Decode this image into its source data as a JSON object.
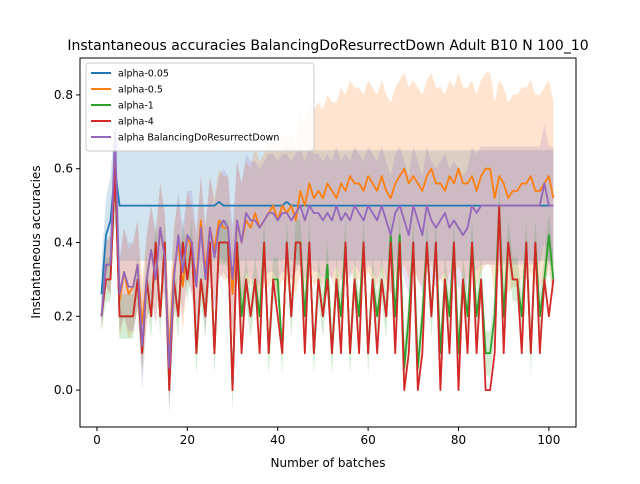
{
  "chart_data": {
    "type": "line",
    "title": "Instantaneous accuracies BalancingDoResurrectDown Adult B10 N 100_10",
    "xlabel": "Number of batches",
    "ylabel": "Instantaneous accuracies",
    "xlim": [
      -3.75,
      106
    ],
    "ylim": [
      -0.1,
      0.9
    ],
    "x_ticks": [
      0,
      20,
      40,
      60,
      80,
      100
    ],
    "y_ticks": [
      0.0,
      0.2,
      0.4,
      0.6,
      0.8
    ],
    "x_tick_labels": [
      "0",
      "20",
      "40",
      "60",
      "80",
      "100"
    ],
    "y_tick_labels": [
      "0.0",
      "0.2",
      "0.4",
      "0.6",
      "0.8"
    ],
    "grid": false,
    "legend_position": "top-left",
    "x": [
      1,
      2,
      3,
      4,
      5,
      6,
      7,
      8,
      9,
      10,
      11,
      12,
      13,
      14,
      15,
      16,
      17,
      18,
      19,
      20,
      21,
      22,
      23,
      24,
      25,
      26,
      27,
      28,
      29,
      30,
      31,
      32,
      33,
      34,
      35,
      36,
      37,
      38,
      39,
      40,
      41,
      42,
      43,
      44,
      45,
      46,
      47,
      48,
      49,
      50,
      51,
      52,
      53,
      54,
      55,
      56,
      57,
      58,
      59,
      60,
      61,
      62,
      63,
      64,
      65,
      66,
      67,
      68,
      69,
      70,
      71,
      72,
      73,
      74,
      75,
      76,
      77,
      78,
      79,
      80,
      81,
      82,
      83,
      84,
      85,
      86,
      87,
      88,
      89,
      90,
      91,
      92,
      93,
      94,
      95,
      96,
      97,
      98,
      99,
      100,
      101
    ],
    "series": [
      {
        "name": "alpha-0.05",
        "color": "#1f77b4",
        "values": [
          0.26,
          0.42,
          0.46,
          0.6,
          0.5,
          0.5,
          0.5,
          0.5,
          0.5,
          0.5,
          0.5,
          0.5,
          0.5,
          0.5,
          0.5,
          0.5,
          0.5,
          0.5,
          0.5,
          0.5,
          0.5,
          0.5,
          0.5,
          0.5,
          0.5,
          0.5,
          0.51,
          0.5,
          0.5,
          0.5,
          0.5,
          0.5,
          0.5,
          0.5,
          0.5,
          0.5,
          0.5,
          0.5,
          0.5,
          0.5,
          0.5,
          0.51,
          0.5,
          0.5,
          0.5,
          0.5,
          0.5,
          0.5,
          0.5,
          0.5,
          0.5,
          0.5,
          0.5,
          0.5,
          0.5,
          0.5,
          0.5,
          0.5,
          0.5,
          0.5,
          0.5,
          0.5,
          0.5,
          0.5,
          0.5,
          0.5,
          0.5,
          0.5,
          0.5,
          0.5,
          0.5,
          0.5,
          0.5,
          0.5,
          0.5,
          0.5,
          0.5,
          0.5,
          0.5,
          0.5,
          0.5,
          0.5,
          0.5,
          0.5,
          0.5,
          0.5,
          0.5,
          0.5,
          0.5,
          0.5,
          0.5,
          0.5,
          0.5,
          0.5,
          0.5,
          0.5,
          0.5,
          0.5,
          0.5,
          0.5,
          0.5
        ],
        "band_halfwidth": [
          0.08,
          0.1,
          0.12,
          0.15,
          0.15,
          0.15,
          0.15,
          0.15,
          0.15,
          0.15,
          0.15,
          0.15,
          0.15,
          0.15,
          0.15,
          0.15,
          0.15,
          0.15,
          0.15,
          0.15,
          0.15,
          0.15,
          0.15,
          0.15,
          0.15,
          0.15,
          0.15,
          0.15,
          0.15,
          0.15,
          0.15,
          0.15,
          0.15,
          0.15,
          0.15,
          0.15,
          0.15,
          0.15,
          0.15,
          0.15,
          0.15,
          0.15,
          0.15,
          0.15,
          0.15,
          0.15,
          0.15,
          0.15,
          0.15,
          0.15,
          0.15,
          0.15,
          0.15,
          0.15,
          0.15,
          0.15,
          0.15,
          0.15,
          0.15,
          0.15,
          0.15,
          0.15,
          0.15,
          0.15,
          0.15,
          0.15,
          0.15,
          0.15,
          0.15,
          0.15,
          0.15,
          0.15,
          0.15,
          0.15,
          0.15,
          0.15,
          0.15,
          0.15,
          0.15,
          0.15,
          0.15,
          0.15,
          0.15,
          0.15,
          0.15,
          0.15,
          0.15,
          0.15,
          0.15,
          0.15,
          0.15,
          0.15,
          0.15,
          0.15,
          0.15,
          0.15,
          0.15,
          0.15,
          0.15,
          0.15,
          0.15
        ]
      },
      {
        "name": "alpha-0.5",
        "color": "#ff7f0e",
        "values": [
          0.2,
          0.34,
          0.34,
          0.62,
          0.24,
          0.32,
          0.26,
          0.28,
          0.34,
          0.18,
          0.3,
          0.38,
          0.3,
          0.44,
          0.36,
          0.1,
          0.32,
          0.4,
          0.28,
          0.42,
          0.38,
          0.3,
          0.46,
          0.32,
          0.44,
          0.38,
          0.46,
          0.44,
          0.44,
          0.26,
          0.46,
          0.4,
          0.46,
          0.44,
          0.48,
          0.44,
          0.46,
          0.48,
          0.5,
          0.46,
          0.5,
          0.48,
          0.5,
          0.46,
          0.54,
          0.5,
          0.56,
          0.52,
          0.54,
          0.52,
          0.56,
          0.54,
          0.52,
          0.56,
          0.54,
          0.58,
          0.56,
          0.56,
          0.54,
          0.58,
          0.56,
          0.54,
          0.58,
          0.54,
          0.52,
          0.56,
          0.58,
          0.6,
          0.56,
          0.58,
          0.56,
          0.54,
          0.58,
          0.6,
          0.56,
          0.56,
          0.54,
          0.58,
          0.56,
          0.6,
          0.56,
          0.56,
          0.58,
          0.54,
          0.58,
          0.6,
          0.6,
          0.52,
          0.58,
          0.56,
          0.52,
          0.54,
          0.54,
          0.56,
          0.56,
          0.58,
          0.54,
          0.54,
          0.56,
          0.58,
          0.52
        ],
        "band_halfwidth": [
          0.04,
          0.06,
          0.08,
          0.1,
          0.1,
          0.12,
          0.12,
          0.12,
          0.12,
          0.12,
          0.12,
          0.12,
          0.12,
          0.12,
          0.12,
          0.12,
          0.12,
          0.12,
          0.12,
          0.12,
          0.12,
          0.12,
          0.12,
          0.12,
          0.14,
          0.14,
          0.14,
          0.14,
          0.14,
          0.14,
          0.16,
          0.16,
          0.16,
          0.16,
          0.18,
          0.18,
          0.18,
          0.2,
          0.2,
          0.2,
          0.2,
          0.2,
          0.2,
          0.2,
          0.22,
          0.22,
          0.22,
          0.24,
          0.24,
          0.24,
          0.24,
          0.24,
          0.26,
          0.26,
          0.26,
          0.26,
          0.26,
          0.26,
          0.26,
          0.26,
          0.26,
          0.26,
          0.26,
          0.26,
          0.26,
          0.26,
          0.26,
          0.26,
          0.26,
          0.26,
          0.26,
          0.26,
          0.26,
          0.26,
          0.26,
          0.26,
          0.26,
          0.26,
          0.26,
          0.26,
          0.26,
          0.26,
          0.26,
          0.26,
          0.26,
          0.26,
          0.26,
          0.26,
          0.26,
          0.26,
          0.26,
          0.26,
          0.26,
          0.26,
          0.26,
          0.26,
          0.26,
          0.26,
          0.26,
          0.26,
          0.26
        ]
      },
      {
        "name": "alpha-1",
        "color": "#2ca02c",
        "values": [
          0.2,
          0.3,
          0.3,
          0.6,
          0.2,
          0.2,
          0.2,
          0.2,
          0.3,
          0.1,
          0.3,
          0.2,
          0.4,
          0.2,
          0.4,
          0.0,
          0.3,
          0.2,
          0.4,
          0.3,
          0.4,
          0.1,
          0.3,
          0.2,
          0.4,
          0.1,
          0.4,
          0.4,
          0.4,
          0.0,
          0.4,
          0.2,
          0.3,
          0.2,
          0.3,
          0.2,
          0.4,
          0.1,
          0.3,
          0.3,
          0.1,
          0.4,
          0.2,
          0.4,
          0.4,
          0.2,
          0.4,
          0.1,
          0.3,
          0.2,
          0.34,
          0.1,
          0.3,
          0.2,
          0.4,
          0.1,
          0.3,
          0.2,
          0.4,
          0.1,
          0.3,
          0.2,
          0.3,
          0.2,
          0.42,
          0.2,
          0.42,
          0.06,
          0.2,
          0.4,
          0.06,
          0.2,
          0.4,
          0.2,
          0.4,
          0.1,
          0.3,
          0.2,
          0.4,
          0.1,
          0.3,
          0.2,
          0.4,
          0.2,
          0.3,
          0.1,
          0.1,
          0.2,
          0.5,
          0.2,
          0.4,
          0.3,
          0.3,
          0.2,
          0.4,
          0.1,
          0.4,
          0.2,
          0.3,
          0.42,
          0.3
        ],
        "band_halfwidth": [
          0.04,
          0.06,
          0.06,
          0.08,
          0.06,
          0.06,
          0.06,
          0.06,
          0.06,
          0.06,
          0.06,
          0.06,
          0.06,
          0.06,
          0.06,
          0.06,
          0.06,
          0.06,
          0.06,
          0.06,
          0.06,
          0.06,
          0.06,
          0.06,
          0.06,
          0.06,
          0.06,
          0.06,
          0.06,
          0.06,
          0.06,
          0.06,
          0.06,
          0.06,
          0.06,
          0.06,
          0.06,
          0.06,
          0.06,
          0.06,
          0.06,
          0.06,
          0.06,
          0.06,
          0.06,
          0.06,
          0.06,
          0.06,
          0.06,
          0.06,
          0.06,
          0.06,
          0.06,
          0.06,
          0.06,
          0.06,
          0.06,
          0.06,
          0.06,
          0.06,
          0.06,
          0.06,
          0.06,
          0.06,
          0.06,
          0.06,
          0.06,
          0.06,
          0.06,
          0.06,
          0.06,
          0.06,
          0.06,
          0.06,
          0.06,
          0.06,
          0.06,
          0.06,
          0.06,
          0.06,
          0.06,
          0.06,
          0.06,
          0.06,
          0.06,
          0.06,
          0.06,
          0.06,
          0.06,
          0.06,
          0.06,
          0.06,
          0.06,
          0.06,
          0.06,
          0.06,
          0.06,
          0.06,
          0.06,
          0.06,
          0.06
        ]
      },
      {
        "name": "alpha-4",
        "color": "#d62728",
        "values": [
          0.2,
          0.3,
          0.3,
          0.6,
          0.2,
          0.2,
          0.2,
          0.2,
          0.3,
          0.1,
          0.3,
          0.2,
          0.4,
          0.2,
          0.4,
          0.0,
          0.3,
          0.2,
          0.4,
          0.3,
          0.4,
          0.1,
          0.3,
          0.2,
          0.4,
          0.1,
          0.4,
          0.4,
          0.4,
          0.0,
          0.4,
          0.1,
          0.3,
          0.2,
          0.3,
          0.1,
          0.4,
          0.1,
          0.3,
          0.2,
          0.1,
          0.4,
          0.2,
          0.4,
          0.4,
          0.1,
          0.4,
          0.1,
          0.3,
          0.2,
          0.3,
          0.1,
          0.3,
          0.1,
          0.4,
          0.1,
          0.3,
          0.1,
          0.4,
          0.1,
          0.3,
          0.1,
          0.3,
          0.2,
          0.4,
          0.1,
          0.4,
          0.0,
          0.1,
          0.4,
          0.0,
          0.1,
          0.4,
          0.2,
          0.4,
          0.0,
          0.3,
          0.1,
          0.4,
          0.0,
          0.3,
          0.1,
          0.4,
          0.1,
          0.3,
          0.0,
          0.0,
          0.1,
          0.5,
          0.1,
          0.4,
          0.3,
          0.3,
          0.1,
          0.4,
          0.1,
          0.4,
          0.1,
          0.3,
          0.2,
          0.3
        ],
        "band_halfwidth": [
          0,
          0,
          0,
          0,
          0,
          0,
          0,
          0,
          0,
          0,
          0,
          0,
          0,
          0,
          0,
          0,
          0,
          0,
          0,
          0,
          0,
          0,
          0,
          0,
          0,
          0,
          0,
          0,
          0,
          0,
          0,
          0,
          0,
          0,
          0,
          0,
          0,
          0,
          0,
          0,
          0,
          0,
          0,
          0,
          0,
          0,
          0,
          0,
          0,
          0,
          0,
          0,
          0,
          0,
          0,
          0,
          0,
          0,
          0,
          0,
          0,
          0,
          0,
          0,
          0,
          0,
          0,
          0,
          0,
          0,
          0,
          0,
          0,
          0,
          0,
          0,
          0,
          0,
          0,
          0,
          0,
          0,
          0,
          0,
          0,
          0,
          0,
          0,
          0,
          0,
          0,
          0,
          0,
          0,
          0,
          0,
          0,
          0,
          0,
          0,
          0
        ]
      },
      {
        "name": "alpha BalancingDoResurrectDown",
        "color": "#9467bd",
        "values": [
          0.2,
          0.34,
          0.34,
          0.7,
          0.26,
          0.32,
          0.28,
          0.28,
          0.34,
          0.12,
          0.3,
          0.38,
          0.3,
          0.44,
          0.36,
          0.06,
          0.3,
          0.42,
          0.32,
          0.42,
          0.4,
          0.28,
          0.44,
          0.3,
          0.44,
          0.36,
          0.44,
          0.46,
          0.44,
          0.3,
          0.46,
          0.4,
          0.48,
          0.46,
          0.46,
          0.44,
          0.46,
          0.48,
          0.48,
          0.46,
          0.48,
          0.48,
          0.46,
          0.48,
          0.5,
          0.46,
          0.5,
          0.48,
          0.48,
          0.46,
          0.48,
          0.46,
          0.5,
          0.46,
          0.48,
          0.46,
          0.5,
          0.48,
          0.46,
          0.5,
          0.48,
          0.46,
          0.5,
          0.46,
          0.42,
          0.48,
          0.5,
          0.46,
          0.42,
          0.5,
          0.46,
          0.42,
          0.5,
          0.46,
          0.44,
          0.46,
          0.48,
          0.44,
          0.46,
          0.44,
          0.42,
          0.44,
          0.5,
          0.48,
          0.5,
          0.5,
          0.5,
          0.5,
          0.5,
          0.5,
          0.5,
          0.5,
          0.5,
          0.5,
          0.5,
          0.5,
          0.5,
          0.5,
          0.56,
          0.5,
          0.5
        ],
        "band_halfwidth": [
          0.04,
          0.06,
          0.08,
          0.1,
          0.1,
          0.12,
          0.12,
          0.12,
          0.12,
          0.12,
          0.12,
          0.12,
          0.12,
          0.12,
          0.12,
          0.12,
          0.12,
          0.12,
          0.12,
          0.12,
          0.14,
          0.14,
          0.14,
          0.14,
          0.14,
          0.14,
          0.14,
          0.14,
          0.14,
          0.14,
          0.16,
          0.16,
          0.16,
          0.16,
          0.16,
          0.16,
          0.16,
          0.16,
          0.16,
          0.16,
          0.16,
          0.16,
          0.16,
          0.16,
          0.16,
          0.16,
          0.16,
          0.16,
          0.16,
          0.16,
          0.16,
          0.16,
          0.16,
          0.16,
          0.16,
          0.16,
          0.16,
          0.16,
          0.16,
          0.16,
          0.16,
          0.16,
          0.16,
          0.16,
          0.16,
          0.16,
          0.16,
          0.16,
          0.16,
          0.16,
          0.16,
          0.16,
          0.16,
          0.16,
          0.16,
          0.16,
          0.16,
          0.16,
          0.16,
          0.16,
          0.16,
          0.16,
          0.16,
          0.16,
          0.16,
          0.16,
          0.16,
          0.16,
          0.16,
          0.16,
          0.16,
          0.16,
          0.16,
          0.16,
          0.16,
          0.16,
          0.16,
          0.16,
          0.16,
          0.16,
          0.16
        ]
      }
    ]
  }
}
